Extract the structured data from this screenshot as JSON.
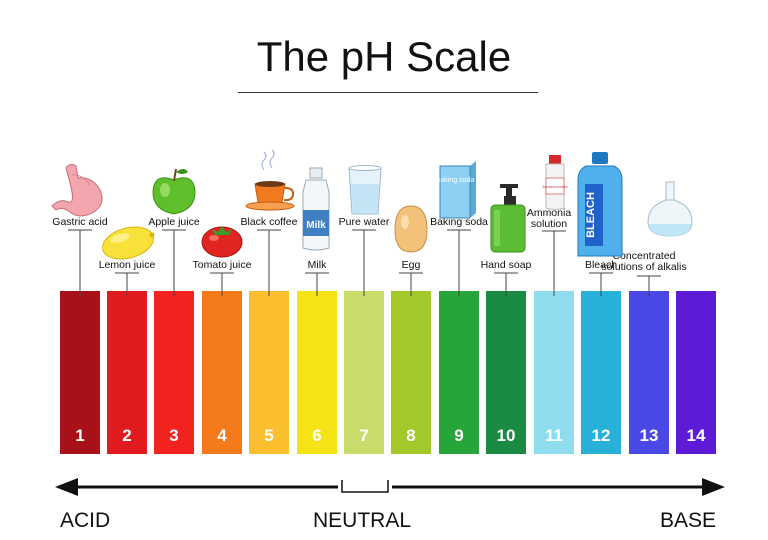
{
  "title": "The pH Scale",
  "scale": [
    {
      "ph": "1",
      "color": "#a8101a"
    },
    {
      "ph": "2",
      "color": "#e01b1f"
    },
    {
      "ph": "3",
      "color": "#f2231f"
    },
    {
      "ph": "4",
      "color": "#f47a1b"
    },
    {
      "ph": "5",
      "color": "#fbbe2f"
    },
    {
      "ph": "6",
      "color": "#f6e316"
    },
    {
      "ph": "7",
      "color": "#c7dc6a"
    },
    {
      "ph": "8",
      "color": "#a3c82a"
    },
    {
      "ph": "9",
      "color": "#25a53a"
    },
    {
      "ph": "10",
      "color": "#1b8a43"
    },
    {
      "ph": "11",
      "color": "#8fdcef"
    },
    {
      "ph": "12",
      "color": "#27b0d8"
    },
    {
      "ph": "13",
      "color": "#4a48e6"
    },
    {
      "ph": "14",
      "color": "#5d1bd7"
    }
  ],
  "substances": [
    {
      "label": "Gastric acid",
      "ph": "1",
      "icon": "stomach-icon"
    },
    {
      "label": "Lemon juice",
      "ph": "2",
      "icon": "lemon-icon"
    },
    {
      "label": "Apple juice",
      "ph": "3",
      "icon": "apple-icon"
    },
    {
      "label": "Tomato juice",
      "ph": "4",
      "icon": "tomato-icon"
    },
    {
      "label": "Black coffee",
      "ph": "5",
      "icon": "coffee-cup-icon"
    },
    {
      "label": "Milk",
      "ph": "6",
      "icon": "milk-bottle-icon"
    },
    {
      "label": "Pure water",
      "ph": "7",
      "icon": "water-glass-icon"
    },
    {
      "label": "Egg",
      "ph": "8",
      "icon": "egg-icon"
    },
    {
      "label": "Baking soda",
      "ph": "9",
      "icon": "baking-soda-box-icon"
    },
    {
      "label": "Hand soap",
      "ph": "10",
      "icon": "soap-dispenser-icon"
    },
    {
      "label": "Ammonia solution",
      "ph": "11",
      "icon": "ammonia-bottle-icon"
    },
    {
      "label": "Bleach",
      "ph": "12",
      "icon": "bleach-bottle-icon"
    },
    {
      "label": "Concentrated solutions of alkalis",
      "ph": "13",
      "icon": "flask-icon"
    }
  ],
  "icon_text": {
    "milk": "Milk",
    "baking_soda": "Baking soda",
    "ammonia": "Ammonia solution",
    "bleach": "BLEACH"
  },
  "axis": {
    "left": "ACID",
    "middle": "NEUTRAL",
    "right": "BASE"
  }
}
